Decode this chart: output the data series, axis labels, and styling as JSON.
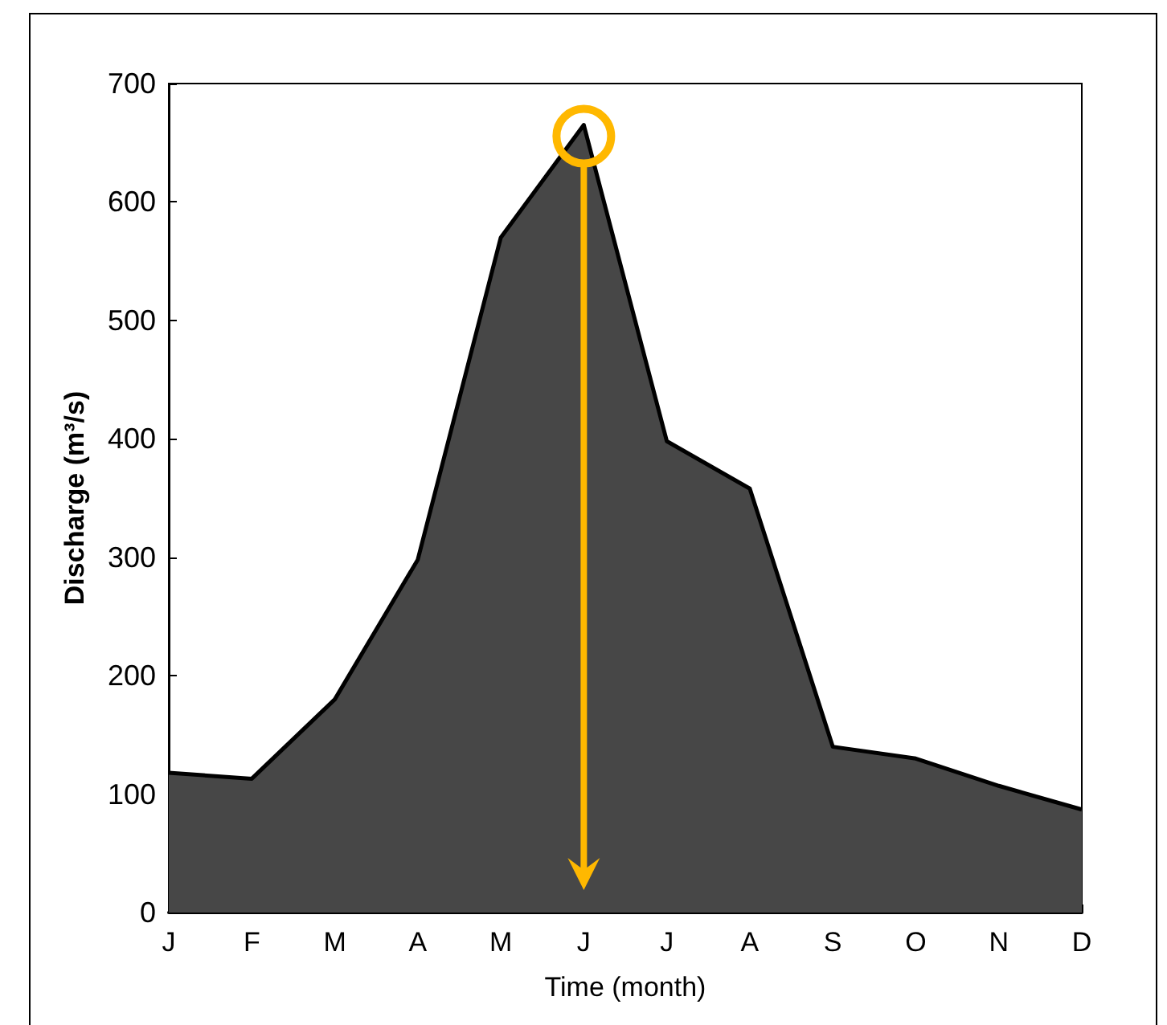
{
  "chart_data": {
    "type": "area",
    "xlabel": "Time (month)",
    "ylabel": "Discharge (m³/s)",
    "categories": [
      "J",
      "F",
      "M",
      "A",
      "M",
      "J",
      "J",
      "A",
      "S",
      "O",
      "N",
      "D"
    ],
    "series": [
      {
        "color": "#474747",
        "values": [
          118,
          113,
          180,
          298,
          570,
          665,
          398,
          358,
          140,
          130,
          107,
          87
        ]
      }
    ],
    "ylim": [
      0,
      700
    ],
    "yticks": [
      0,
      100,
      200,
      300,
      400,
      500,
      600,
      700
    ],
    "grid": false
  }
}
